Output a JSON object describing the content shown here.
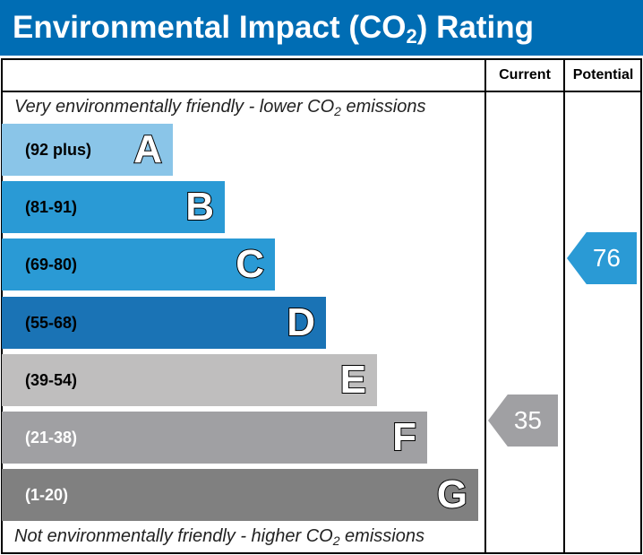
{
  "title": {
    "main": "Environmental Impact (CO",
    "sub": "2",
    "end": ") Rating"
  },
  "columns": {
    "current": "Current",
    "potential": "Potential"
  },
  "top_note": {
    "pre": "Very environmentally friendly - lower CO",
    "sub": "2",
    "post": " emissions"
  },
  "bottom_note": {
    "pre": "Not environmentally friendly - higher CO",
    "sub": "2",
    "post": " emissions"
  },
  "bands": [
    {
      "letter": "A",
      "range": "(92 plus)",
      "color": "#8ac5e8",
      "range_color": "#000"
    },
    {
      "letter": "B",
      "range": "(81-91)",
      "color": "#2a9ad5",
      "range_color": "#000"
    },
    {
      "letter": "C",
      "range": "(69-80)",
      "color": "#2a9ad5",
      "range_color": "#000"
    },
    {
      "letter": "D",
      "range": "(55-68)",
      "color": "#1a73b5",
      "range_color": "#000"
    },
    {
      "letter": "E",
      "range": "(39-54)",
      "color": "#bfbebe",
      "range_color": "#000"
    },
    {
      "letter": "F",
      "range": "(21-38)",
      "color": "#a0a0a3",
      "range_color": "#fff"
    },
    {
      "letter": "G",
      "range": "(1-20)",
      "color": "#808080",
      "range_color": "#fff"
    }
  ],
  "current": {
    "value": "35",
    "band": "F",
    "color": "#a0a0a3"
  },
  "potential": {
    "value": "76",
    "band": "C",
    "color": "#2a9ad5"
  },
  "colors": {
    "title_bg": "#006db4"
  }
}
